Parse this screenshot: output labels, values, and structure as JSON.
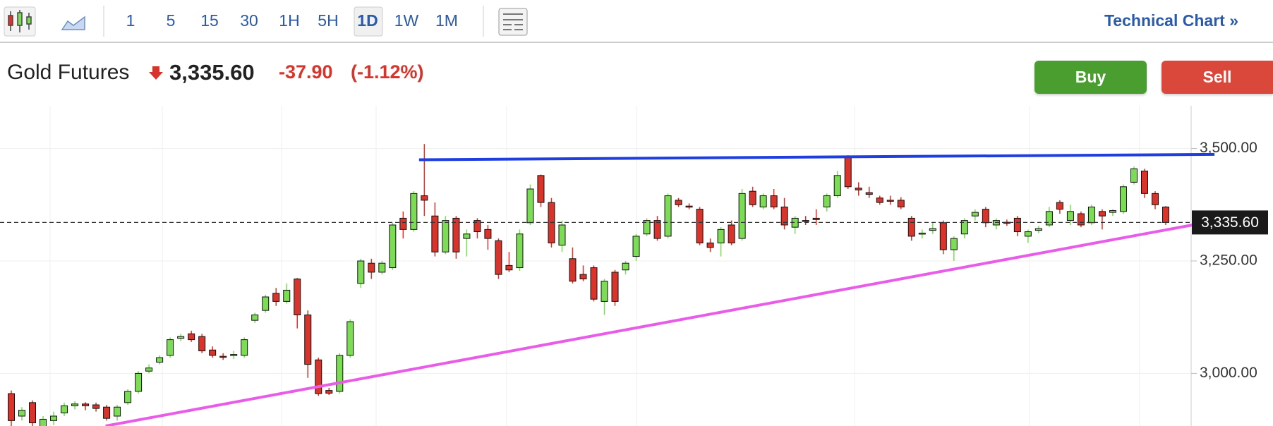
{
  "toolbar": {
    "intervals": [
      "1",
      "5",
      "15",
      "30",
      "1H",
      "5H",
      "1D",
      "1W",
      "1M"
    ],
    "selected": "1D",
    "link": "Technical Chart »"
  },
  "quote": {
    "name": "Gold Futures",
    "price": "3,335.60",
    "change": "-37.90",
    "change_percent": "(-1.12%)"
  },
  "buttons": {
    "buy": "Buy",
    "sell": "Sell"
  },
  "chart_data": {
    "type": "candlestick",
    "up_color": "#7ddc55",
    "down_color": "#d9342b",
    "ylim": [
      2883,
      3595
    ],
    "yticks": [
      {
        "value": 3000,
        "label": "3,000.00"
      },
      {
        "value": 3250,
        "label": "3,250.00"
      },
      {
        "value": 3500,
        "label": "3,500.00"
      }
    ],
    "grid": true,
    "last_price": {
      "value": 3335.6,
      "label": "3,335.60"
    },
    "trendlines": [
      {
        "color": "#1f3ee0",
        "start": [
          38.5,
          3475
        ],
        "end": [
          113.6,
          3487
        ]
      },
      {
        "color": "#e85ce8",
        "start": [
          8.9,
          2883
        ],
        "end": [
          113.6,
          3339
        ]
      }
    ],
    "ohlc": [
      [
        2955,
        2962,
        2880,
        2895
      ],
      [
        2905,
        2925,
        2895,
        2918
      ],
      [
        2935,
        2940,
        2875,
        2890
      ],
      [
        2880,
        2905,
        2870,
        2898
      ],
      [
        2895,
        2915,
        2885,
        2905
      ],
      [
        2912,
        2935,
        2905,
        2928
      ],
      [
        2928,
        2938,
        2920,
        2932
      ],
      [
        2932,
        2936,
        2918,
        2928
      ],
      [
        2930,
        2935,
        2915,
        2922
      ],
      [
        2925,
        2930,
        2895,
        2900
      ],
      [
        2905,
        2930,
        2895,
        2925
      ],
      [
        2935,
        2965,
        2930,
        2960
      ],
      [
        2960,
        3005,
        2955,
        3000
      ],
      [
        3005,
        3020,
        3000,
        3012
      ],
      [
        3025,
        3040,
        3020,
        3035
      ],
      [
        3040,
        3080,
        3035,
        3075
      ],
      [
        3078,
        3088,
        3072,
        3082
      ],
      [
        3088,
        3095,
        3070,
        3075
      ],
      [
        3082,
        3088,
        3045,
        3050
      ],
      [
        3052,
        3060,
        3035,
        3040
      ],
      [
        3038,
        3045,
        3030,
        3036
      ],
      [
        3040,
        3050,
        3032,
        3042
      ],
      [
        3040,
        3080,
        3035,
        3075
      ],
      [
        3118,
        3135,
        3112,
        3130
      ],
      [
        3140,
        3175,
        3135,
        3170
      ],
      [
        3178,
        3190,
        3150,
        3160
      ],
      [
        3160,
        3200,
        3155,
        3185
      ],
      [
        3210,
        3212,
        3100,
        3130
      ],
      [
        3130,
        3140,
        2990,
        3020
      ],
      [
        3030,
        3035,
        2950,
        2955
      ],
      [
        2962,
        2968,
        2952,
        2956
      ],
      [
        2960,
        3045,
        2955,
        3040
      ],
      [
        3040,
        3120,
        3035,
        3115
      ],
      [
        3200,
        3255,
        3190,
        3250
      ],
      [
        3245,
        3255,
        3210,
        3225
      ],
      [
        3225,
        3250,
        3220,
        3245
      ],
      [
        3235,
        3335,
        3230,
        3330
      ],
      [
        3345,
        3360,
        3300,
        3320
      ],
      [
        3320,
        3405,
        3315,
        3400
      ],
      [
        3395,
        3510,
        3350,
        3385
      ],
      [
        3350,
        3380,
        3260,
        3270
      ],
      [
        3270,
        3350,
        3265,
        3340
      ],
      [
        3345,
        3350,
        3255,
        3270
      ],
      [
        3300,
        3320,
        3260,
        3310
      ],
      [
        3340,
        3345,
        3300,
        3315
      ],
      [
        3320,
        3330,
        3275,
        3300
      ],
      [
        3295,
        3300,
        3210,
        3220
      ],
      [
        3240,
        3270,
        3225,
        3230
      ],
      [
        3235,
        3320,
        3228,
        3310
      ],
      [
        3335,
        3420,
        3330,
        3410
      ],
      [
        3440,
        3442,
        3370,
        3380
      ],
      [
        3380,
        3390,
        3280,
        3290
      ],
      [
        3285,
        3340,
        3270,
        3330
      ],
      [
        3255,
        3280,
        3200,
        3205
      ],
      [
        3220,
        3240,
        3205,
        3210
      ],
      [
        3235,
        3240,
        3160,
        3165
      ],
      [
        3160,
        3210,
        3130,
        3205
      ],
      [
        3225,
        3230,
        3150,
        3160
      ],
      [
        3230,
        3250,
        3220,
        3245
      ],
      [
        3260,
        3310,
        3250,
        3305
      ],
      [
        3310,
        3345,
        3305,
        3340
      ],
      [
        3340,
        3350,
        3295,
        3300
      ],
      [
        3305,
        3400,
        3300,
        3395
      ],
      [
        3385,
        3390,
        3370,
        3375
      ],
      [
        3372,
        3378,
        3365,
        3370
      ],
      [
        3365,
        3370,
        3285,
        3290
      ],
      [
        3290,
        3300,
        3270,
        3280
      ],
      [
        3290,
        3325,
        3260,
        3320
      ],
      [
        3330,
        3340,
        3285,
        3290
      ],
      [
        3300,
        3410,
        3295,
        3400
      ],
      [
        3405,
        3415,
        3370,
        3375
      ],
      [
        3370,
        3400,
        3365,
        3395
      ],
      [
        3395,
        3410,
        3365,
        3370
      ],
      [
        3370,
        3390,
        3320,
        3330
      ],
      [
        3325,
        3350,
        3310,
        3345
      ],
      [
        3340,
        3350,
        3330,
        3338
      ],
      [
        3345,
        3365,
        3330,
        3342
      ],
      [
        3370,
        3400,
        3360,
        3395
      ],
      [
        3395,
        3450,
        3390,
        3440
      ],
      [
        3480,
        3485,
        3410,
        3415
      ],
      [
        3412,
        3425,
        3395,
        3408
      ],
      [
        3402,
        3415,
        3390,
        3398
      ],
      [
        3390,
        3395,
        3375,
        3380
      ],
      [
        3385,
        3395,
        3375,
        3383
      ],
      [
        3385,
        3392,
        3365,
        3370
      ],
      [
        3345,
        3350,
        3295,
        3305
      ],
      [
        3310,
        3320,
        3300,
        3312
      ],
      [
        3318,
        3335,
        3310,
        3322
      ],
      [
        3335,
        3340,
        3265,
        3275
      ],
      [
        3275,
        3305,
        3250,
        3300
      ],
      [
        3310,
        3345,
        3300,
        3340
      ],
      [
        3350,
        3365,
        3340,
        3358
      ],
      [
        3365,
        3370,
        3325,
        3335
      ],
      [
        3330,
        3345,
        3320,
        3340
      ],
      [
        3336,
        3342,
        3328,
        3335
      ],
      [
        3345,
        3350,
        3305,
        3315
      ],
      [
        3305,
        3320,
        3290,
        3315
      ],
      [
        3318,
        3328,
        3312,
        3322
      ],
      [
        3330,
        3370,
        3325,
        3360
      ],
      [
        3380,
        3385,
        3355,
        3365
      ],
      [
        3340,
        3375,
        3330,
        3360
      ],
      [
        3355,
        3360,
        3325,
        3330
      ],
      [
        3335,
        3375,
        3330,
        3370
      ],
      [
        3360,
        3365,
        3320,
        3350
      ],
      [
        3358,
        3365,
        3350,
        3362
      ],
      [
        3360,
        3420,
        3355,
        3415
      ],
      [
        3425,
        3460,
        3420,
        3455
      ],
      [
        3450,
        3455,
        3390,
        3400
      ],
      [
        3400,
        3405,
        3365,
        3375
      ],
      [
        3370,
        3372,
        3330,
        3335.6
      ]
    ]
  }
}
